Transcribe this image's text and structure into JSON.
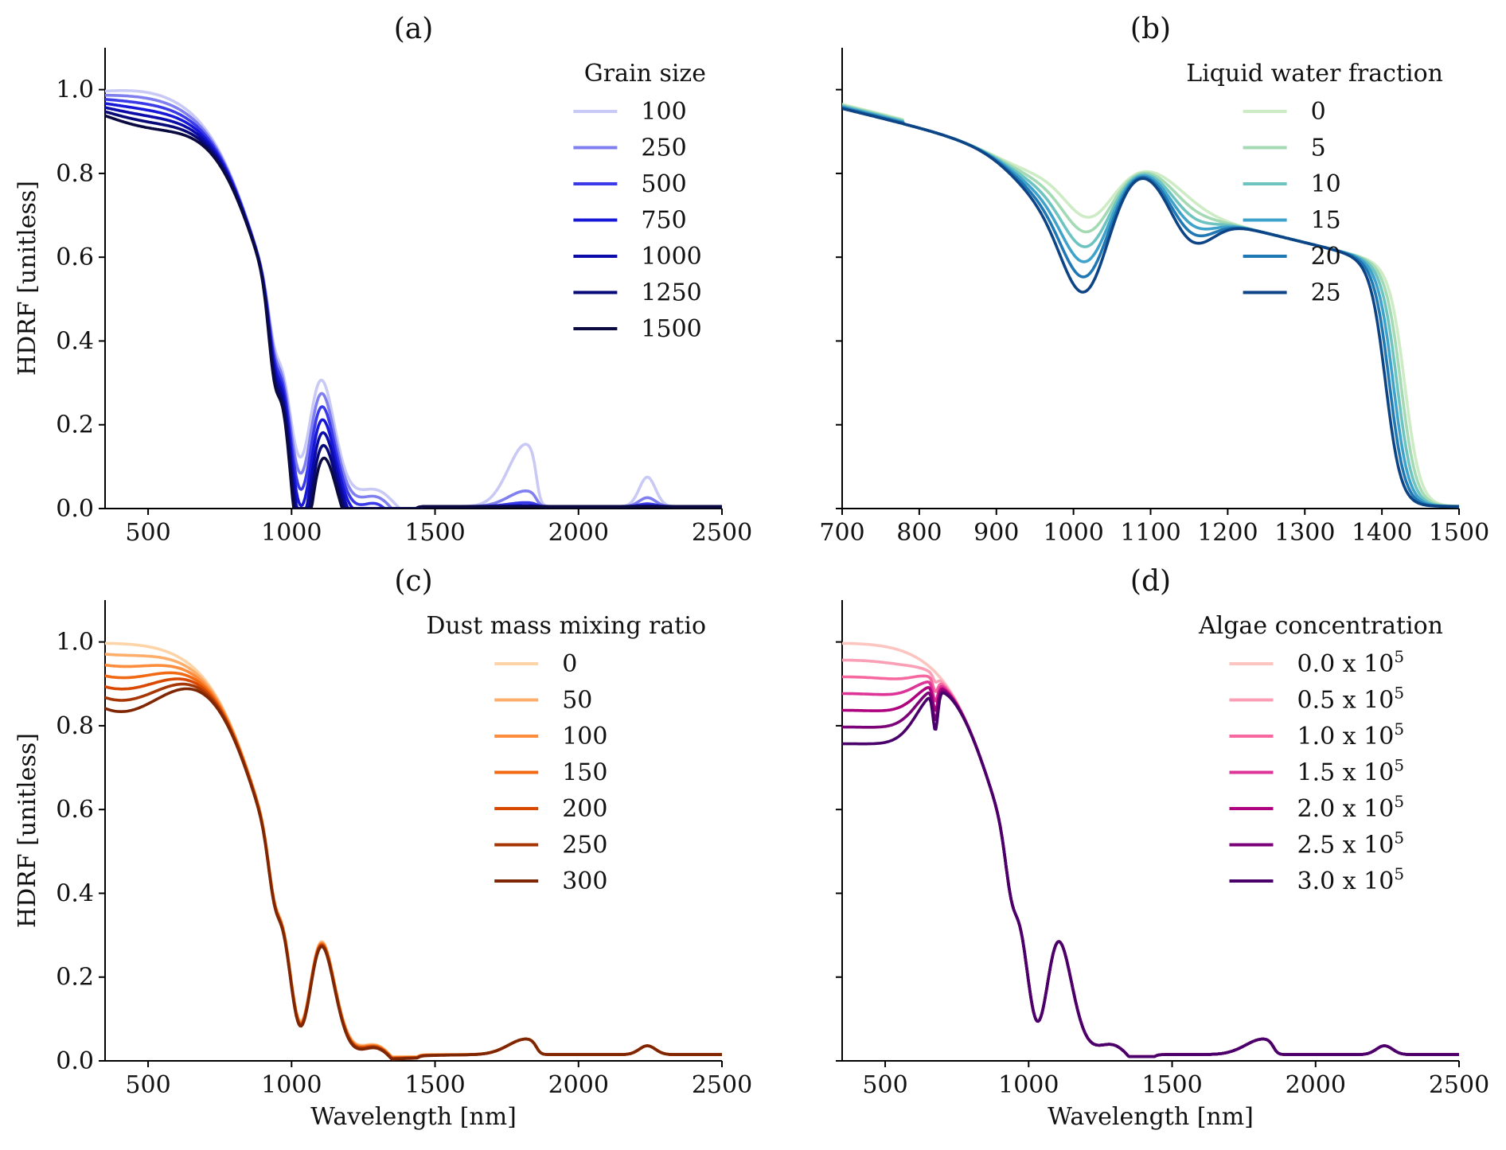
{
  "figure": {
    "ylabel_shared": "HDRF [unitless]",
    "xlabel_shared": "Wavelength [nm]"
  },
  "chart_data": [
    {
      "id": "a",
      "type": "line",
      "title": "(a)",
      "xlabel": "",
      "ylabel": "HDRF [unitless]",
      "xlim": [
        350,
        2500
      ],
      "ylim": [
        0,
        1.1
      ],
      "xticks": [
        500,
        1000,
        1500,
        2000,
        2500
      ],
      "yticks": [
        "0.0",
        "0.2",
        "0.4",
        "0.6",
        "0.8",
        "1.0"
      ],
      "legend_title": "Grain size",
      "legend_position": "top-right",
      "model": "grain",
      "series": [
        {
          "name": "100",
          "p": 0,
          "color": "#c9c9f5"
        },
        {
          "name": "250",
          "p": 1,
          "color": "#7f7ff0"
        },
        {
          "name": "500",
          "p": 2,
          "color": "#3a3ae8"
        },
        {
          "name": "750",
          "p": 3,
          "color": "#1717d8"
        },
        {
          "name": "1000",
          "p": 4,
          "color": "#0b0baa"
        },
        {
          "name": "1250",
          "p": 5,
          "color": "#080878"
        },
        {
          "name": "1500",
          "p": 6,
          "color": "#0a0a40"
        }
      ]
    },
    {
      "id": "b",
      "type": "line",
      "title": "(b)",
      "xlabel": "",
      "ylabel": "",
      "xlim": [
        700,
        1500
      ],
      "ylim": [
        0,
        1.1
      ],
      "xticks": [
        700,
        800,
        900,
        1000,
        1100,
        1200,
        1300,
        1400,
        1500
      ],
      "yticks": [
        "0.0",
        "0.2",
        "0.4",
        "0.6",
        "0.8",
        "1.0"
      ],
      "show_ytick_labels": false,
      "legend_title": "Liquid water fraction",
      "legend_position": "top-right",
      "model": "water",
      "series": [
        {
          "name": "0",
          "p": 0,
          "color": "#cdebc5"
        },
        {
          "name": "5",
          "p": 1,
          "color": "#a3d9b3"
        },
        {
          "name": "10",
          "p": 2,
          "color": "#6cc3c0"
        },
        {
          "name": "15",
          "p": 3,
          "color": "#3ea2cb"
        },
        {
          "name": "20",
          "p": 4,
          "color": "#1f78b4"
        },
        {
          "name": "25",
          "p": 5,
          "color": "#0d4485"
        }
      ]
    },
    {
      "id": "c",
      "type": "line",
      "title": "(c)",
      "xlabel": "Wavelength [nm]",
      "ylabel": "HDRF [unitless]",
      "xlim": [
        350,
        2500
      ],
      "ylim": [
        0,
        1.1
      ],
      "xticks": [
        500,
        1000,
        1500,
        2000,
        2500
      ],
      "yticks": [
        "0.0",
        "0.2",
        "0.4",
        "0.6",
        "0.8",
        "1.0"
      ],
      "legend_title": "Dust mass mixing ratio",
      "legend_position": "top-right",
      "model": "dust",
      "series": [
        {
          "name": "0",
          "p": 0,
          "color": "#fdd4a8"
        },
        {
          "name": "50",
          "p": 1,
          "color": "#fdae6b"
        },
        {
          "name": "100",
          "p": 2,
          "color": "#fd8d3c"
        },
        {
          "name": "150",
          "p": 3,
          "color": "#f16913"
        },
        {
          "name": "200",
          "p": 4,
          "color": "#d94801"
        },
        {
          "name": "250",
          "p": 5,
          "color": "#a63603"
        },
        {
          "name": "300",
          "p": 6,
          "color": "#7f2704"
        }
      ]
    },
    {
      "id": "d",
      "type": "line",
      "title": "(d)",
      "xlabel": "Wavelength [nm]",
      "ylabel": "",
      "xlim": [
        350,
        2500
      ],
      "ylim": [
        0,
        1.1
      ],
      "xticks": [
        500,
        1000,
        1500,
        2000,
        2500
      ],
      "yticks": [
        "0.0",
        "0.2",
        "0.4",
        "0.6",
        "0.8",
        "1.0"
      ],
      "show_ytick_labels": false,
      "legend_title": "Algae concentration",
      "legend_position": "top-right",
      "model": "algae",
      "series": [
        {
          "name": "0.0 x 10",
          "sup": "5",
          "p": 0,
          "color": "#fcc5c0"
        },
        {
          "name": "0.5 x 10",
          "sup": "5",
          "p": 1,
          "color": "#fa9fb5"
        },
        {
          "name": "1.0 x 10",
          "sup": "5",
          "p": 2,
          "color": "#f768a1"
        },
        {
          "name": "1.5 x 10",
          "sup": "5",
          "p": 3,
          "color": "#dd3497"
        },
        {
          "name": "2.0 x 10",
          "sup": "5",
          "p": 4,
          "color": "#ae017e"
        },
        {
          "name": "2.5 x 10",
          "sup": "5",
          "p": 5,
          "color": "#7a0177"
        },
        {
          "name": "3.0 x 10",
          "sup": "5",
          "p": 6,
          "color": "#49006a"
        }
      ]
    }
  ]
}
